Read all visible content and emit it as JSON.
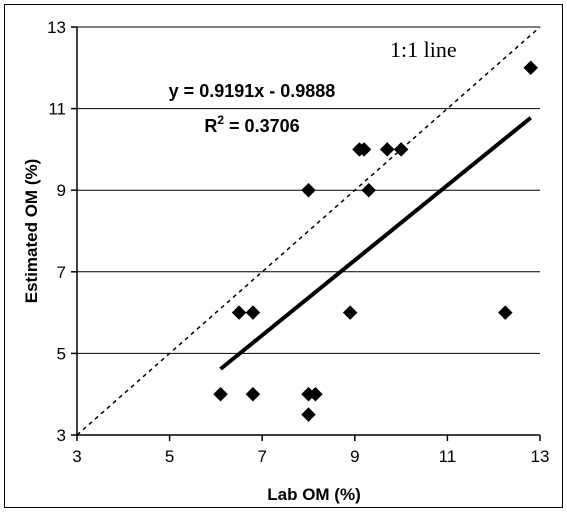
{
  "chart_data": {
    "type": "scatter",
    "xlabel": "Lab OM (%)",
    "ylabel": "Estimated OM (%)",
    "xlim": [
      3,
      13
    ],
    "ylim": [
      3,
      13
    ],
    "xticks": [
      3,
      5,
      7,
      9,
      11,
      13
    ],
    "yticks": [
      3,
      5,
      7,
      9,
      11,
      13
    ],
    "grid": "horizontal",
    "series": [
      {
        "marker": "diamond",
        "color": "#000000",
        "points": [
          {
            "x": 6.1,
            "y": 4.0
          },
          {
            "x": 6.5,
            "y": 6.0
          },
          {
            "x": 6.8,
            "y": 6.0
          },
          {
            "x": 6.8,
            "y": 4.0
          },
          {
            "x": 8.0,
            "y": 9.0
          },
          {
            "x": 8.0,
            "y": 4.0
          },
          {
            "x": 8.0,
            "y": 3.5
          },
          {
            "x": 8.15,
            "y": 4.0
          },
          {
            "x": 8.9,
            "y": 6.0
          },
          {
            "x": 9.1,
            "y": 10.0
          },
          {
            "x": 9.2,
            "y": 10.0
          },
          {
            "x": 9.3,
            "y": 9.0
          },
          {
            "x": 9.7,
            "y": 10.0
          },
          {
            "x": 10.0,
            "y": 10.0
          },
          {
            "x": 12.25,
            "y": 6.0
          },
          {
            "x": 12.8,
            "y": 12.0
          }
        ]
      }
    ],
    "trendline": {
      "slope": 0.9191,
      "intercept": -0.9888,
      "x_start": 6.1,
      "x_end": 12.8,
      "equation_label": "y = 0.9191x - 0.9888",
      "r2_label_base": "R",
      "r2_label_exp": "2",
      "r2_label_rest": " = 0.3706"
    },
    "reference_line": {
      "label": "1:1 line",
      "style": "dashed"
    }
  }
}
